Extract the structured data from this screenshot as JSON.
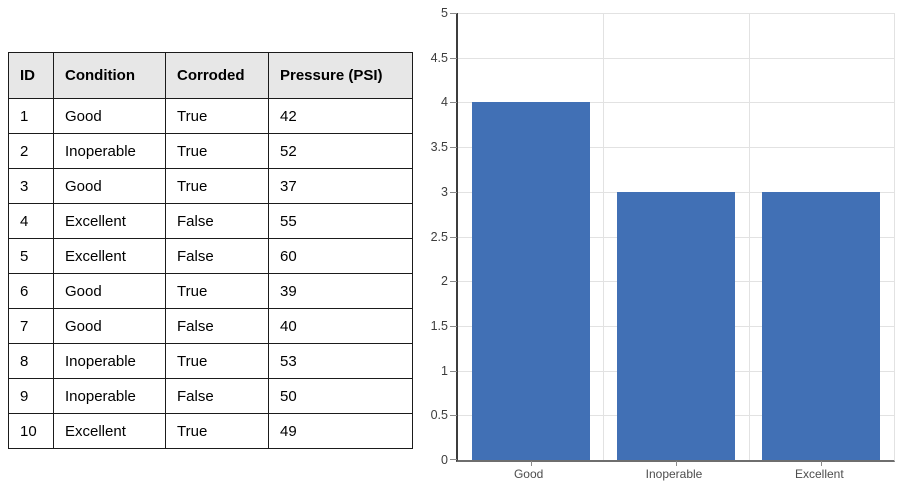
{
  "table": {
    "columns": [
      "ID",
      "Condition",
      "Corroded",
      "Pressure (PSI)"
    ],
    "rows": [
      [
        "1",
        "Good",
        "True",
        "42"
      ],
      [
        "2",
        "Inoperable",
        "True",
        "52"
      ],
      [
        "3",
        "Good",
        "True",
        "37"
      ],
      [
        "4",
        "Excellent",
        "False",
        "55"
      ],
      [
        "5",
        "Excellent",
        "False",
        "60"
      ],
      [
        "6",
        "Good",
        "True",
        "39"
      ],
      [
        "7",
        "Good",
        "False",
        "40"
      ],
      [
        "8",
        "Inoperable",
        "True",
        "53"
      ],
      [
        "9",
        "Inoperable",
        "False",
        "50"
      ],
      [
        "10",
        "Excellent",
        "True",
        "49"
      ]
    ]
  },
  "chart_data": {
    "type": "bar",
    "title": "",
    "categories": [
      "Good",
      "Inoperable",
      "Excellent"
    ],
    "values": [
      4,
      3,
      3
    ],
    "xlabel": "",
    "ylabel": "",
    "ylim": [
      0,
      5
    ],
    "ytick_step": 0.5,
    "grid": true,
    "legend": false,
    "bar_color": "#4170B5"
  },
  "colors": {
    "bar": "#4170B5",
    "gridline": "#e2e2e2",
    "y_axis_line": "#3d3d3d",
    "x_axis_line": "#6e6e6e",
    "tick": "#8a8a8a",
    "y_label_text": "#3d3d3d",
    "x_label_text": "#4d4d4d",
    "table_border": "#1b1b1b",
    "table_header_bg": "#e7e7e7"
  }
}
